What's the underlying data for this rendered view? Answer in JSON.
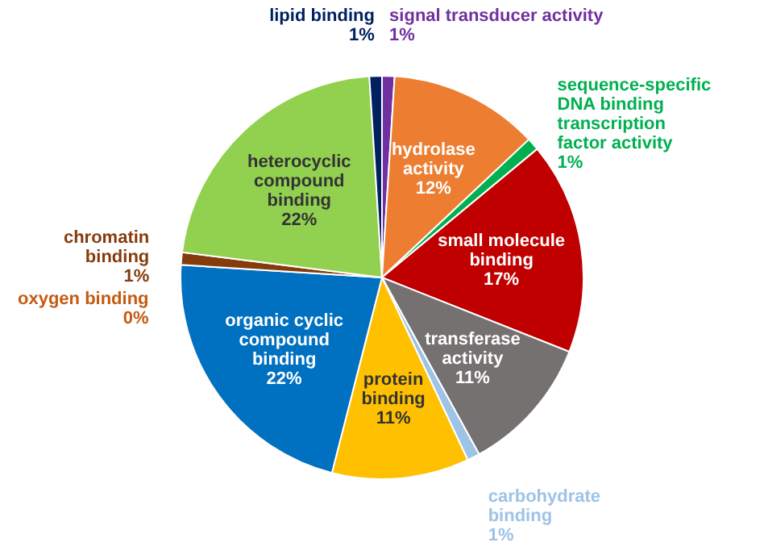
{
  "chart_data": {
    "type": "pie",
    "categories": [
      "signal transducer activity",
      "hydrolase activity",
      "sequence-specific DNA binding transcription factor activity",
      "small molecule binding",
      "transferase activity",
      "carbohydrate binding",
      "protein binding",
      "organic cyclic compound binding",
      "oxygen binding",
      "chromatin binding",
      "heterocyclic compound binding",
      "lipid binding"
    ],
    "values": [
      1,
      12,
      1,
      17,
      11,
      1,
      11,
      22,
      0,
      1,
      22,
      1
    ],
    "value_labels": [
      "1%",
      "12%",
      "1%",
      "17%",
      "11%",
      "1%",
      "11%",
      "22%",
      "0%",
      "1%",
      "22%",
      "1%"
    ],
    "colors": [
      "#7030a0",
      "#ed7d31",
      "#00b050",
      "#c00000",
      "#767171",
      "#9dc3e6",
      "#ffc000",
      "#0070c0",
      "#c55a11",
      "#843c0c",
      "#92d050",
      "#002060"
    ],
    "legend": false
  }
}
